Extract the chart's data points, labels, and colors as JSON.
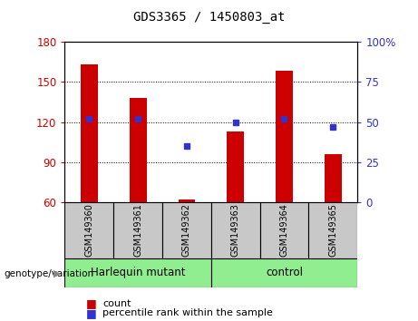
{
  "title": "GDS3365 / 1450803_at",
  "samples": [
    "GSM149360",
    "GSM149361",
    "GSM149362",
    "GSM149363",
    "GSM149364",
    "GSM149365"
  ],
  "count_values": [
    163,
    138,
    62,
    113,
    158,
    96
  ],
  "percentile_values": [
    52,
    52,
    35,
    50,
    52,
    47
  ],
  "left_ylim": [
    60,
    180
  ],
  "left_yticks": [
    60,
    90,
    120,
    150,
    180
  ],
  "right_ylim": [
    0,
    100
  ],
  "right_yticks": [
    0,
    25,
    50,
    75,
    100
  ],
  "right_yticklabels": [
    "0",
    "25",
    "50",
    "75",
    "100%"
  ],
  "bar_color": "#cc0000",
  "dot_color": "#3333cc",
  "left_tick_color": "#cc0000",
  "right_tick_color": "#3333cc",
  "groups": [
    {
      "label": "Harlequin mutant",
      "start": 0,
      "end": 3,
      "color": "#90ee90"
    },
    {
      "label": "control",
      "start": 3,
      "end": 6,
      "color": "#90ee90"
    }
  ],
  "group_label": "genotype/variation",
  "legend_count_label": "count",
  "legend_percentile_label": "percentile rank within the sample",
  "grid_color": "black",
  "grid_linestyle": "dotted",
  "grid_yticks": [
    90,
    120,
    150
  ],
  "bar_width": 0.35,
  "group_box_color": "#c8c8c8",
  "title_fontsize": 10
}
